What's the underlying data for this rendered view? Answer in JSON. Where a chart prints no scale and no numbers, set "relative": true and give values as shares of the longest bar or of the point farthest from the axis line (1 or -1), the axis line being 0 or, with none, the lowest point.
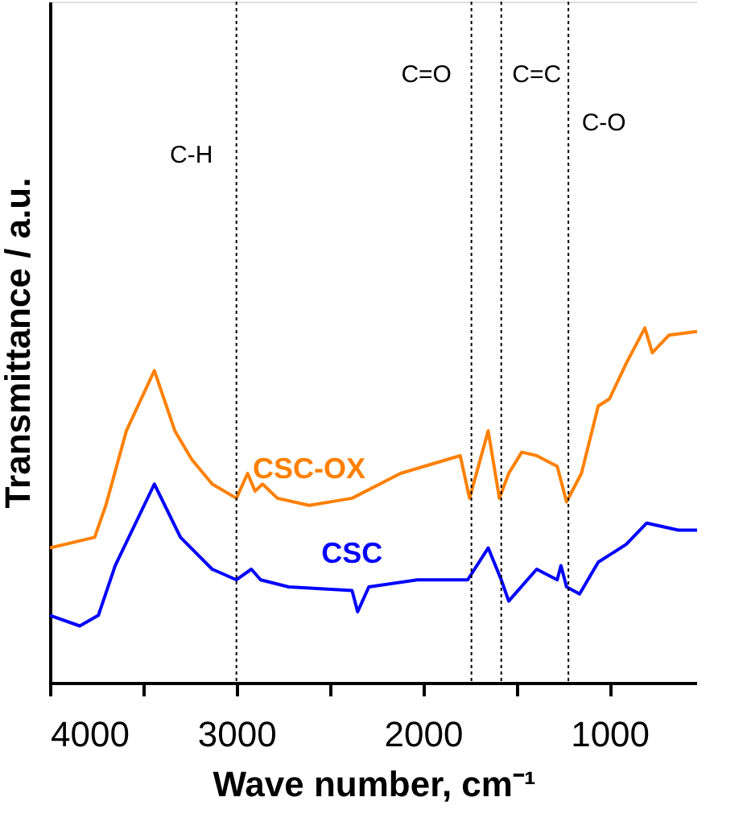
{
  "chart_data": {
    "type": "line",
    "relative": true,
    "xlabel": "Wave number, cm⁻¹",
    "ylabel": "Transmittance / a.u.",
    "xlim": [
      4000,
      530
    ],
    "xticks": [
      4000,
      {
        "value": 3500,
        "label": null
      },
      3000,
      {
        "value": 2500,
        "label": null
      },
      2000,
      {
        "value": 1500,
        "label": null
      },
      1000
    ],
    "legend": false,
    "grid": false,
    "series": [
      {
        "name": "CSC-OX",
        "color": "#ff8000",
        "x": [
          4000,
          3760,
          3700,
          3590,
          3440,
          3330,
          3240,
          3130,
          3000,
          2940,
          2900,
          2860,
          2780,
          2610,
          2380,
          2120,
          1800,
          1750,
          1650,
          1590,
          1540,
          1470,
          1390,
          1280,
          1230,
          1150,
          1060,
          1000,
          910,
          810,
          770,
          680,
          530
        ],
        "values": [
          0.38,
          0.41,
          0.5,
          0.71,
          0.88,
          0.71,
          0.63,
          0.56,
          0.52,
          0.59,
          0.54,
          0.56,
          0.52,
          0.5,
          0.52,
          0.59,
          0.64,
          0.52,
          0.71,
          0.52,
          0.59,
          0.65,
          0.64,
          0.61,
          0.51,
          0.59,
          0.78,
          0.8,
          0.9,
          1.0,
          0.93,
          0.98,
          0.99
        ]
      },
      {
        "name": "CSC",
        "color": "#0000ff",
        "x": [
          4000,
          3840,
          3740,
          3650,
          3440,
          3300,
          3130,
          3000,
          2920,
          2870,
          2720,
          2380,
          2350,
          2290,
          2030,
          1760,
          1650,
          1580,
          1540,
          1390,
          1280,
          1260,
          1230,
          1160,
          1060,
          910,
          800,
          630,
          530
        ],
        "values": [
          0.19,
          0.16,
          0.19,
          0.33,
          0.56,
          0.41,
          0.32,
          0.29,
          0.32,
          0.29,
          0.27,
          0.26,
          0.2,
          0.27,
          0.29,
          0.29,
          0.38,
          0.29,
          0.23,
          0.32,
          0.29,
          0.33,
          0.27,
          0.25,
          0.34,
          0.39,
          0.45,
          0.43,
          0.43
        ]
      }
    ],
    "ref_lines": [
      {
        "axis": "x",
        "value": 3000,
        "label": "C-H",
        "line_style": "dotted"
      },
      {
        "axis": "x",
        "value": 1740,
        "label": "C=O",
        "line_style": "dotted"
      },
      {
        "axis": "x",
        "value": 1580,
        "label": "C=C",
        "line_style": "dotted"
      },
      {
        "axis": "x",
        "value": 1220,
        "label": "C-O",
        "line_style": "dotted"
      }
    ]
  }
}
